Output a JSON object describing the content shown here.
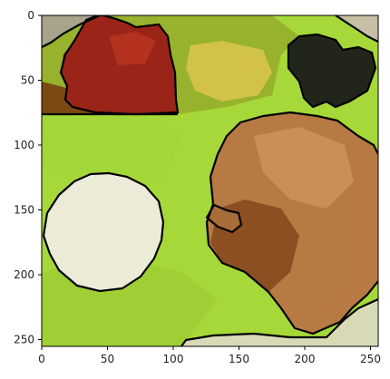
{
  "axes": {
    "x_ticks": [
      "0",
      "50",
      "100",
      "150",
      "200",
      "250"
    ],
    "y_ticks": [
      "0",
      "50",
      "100",
      "150",
      "200",
      "250"
    ]
  },
  "image": {
    "colors": {
      "background_green": "#a7d83a",
      "segment_border": "#000000",
      "dark_red": "#8f1f16",
      "brown_light": "#c58c52",
      "brown_dark": "#8f5228",
      "olive": "#9aa92e",
      "yellow": "#d6c64a",
      "dark_olive": "#23261a",
      "cream": "#ecebd8",
      "gray_corner": "#a8a38c"
    }
  }
}
